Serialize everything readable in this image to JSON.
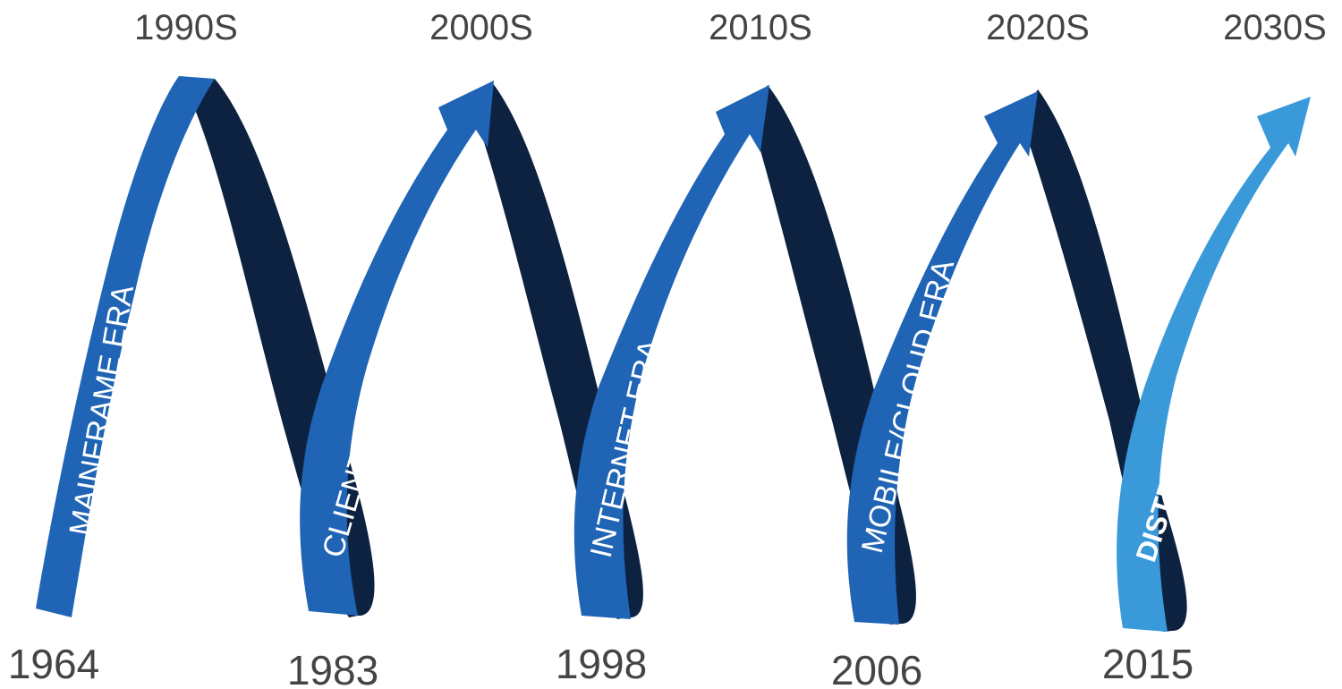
{
  "top_years": [
    "1990S",
    "2000S",
    "2010S",
    "2020S",
    "2030S"
  ],
  "bottom_years": [
    "1964",
    "1983",
    "1998",
    "2006",
    "2015"
  ],
  "eras": [
    {
      "label": "MAINFRAME ERA",
      "emphasis": false
    },
    {
      "label": "CLIENT/SERVER ERA",
      "emphasis": false
    },
    {
      "label": "INTERNET ERA",
      "emphasis": false
    },
    {
      "label": "MOBILE/CLOUD ERA",
      "emphasis": false
    },
    {
      "label": "DISTRIBUTED EDGE ERA",
      "emphasis": true
    }
  ],
  "colors": {
    "ribbon_front": "#1f64b5",
    "ribbon_back": "#0d2140",
    "ribbon_last": "#3a9ad9",
    "text_years": "#444444",
    "text_era": "#ffffff"
  }
}
